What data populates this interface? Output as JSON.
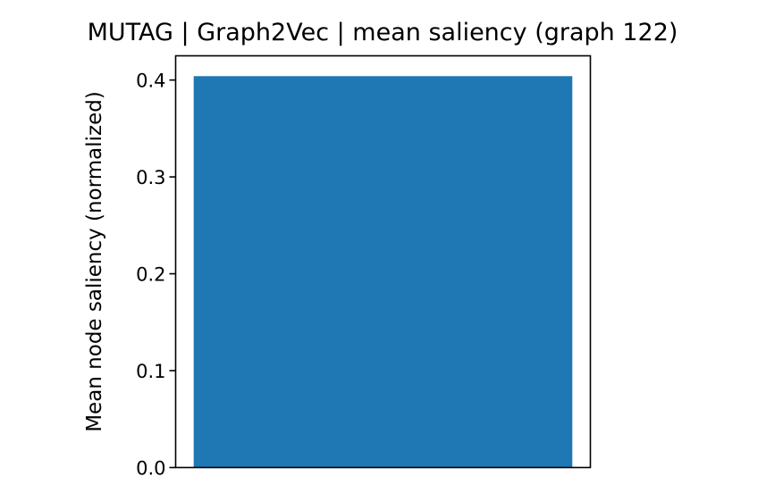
{
  "chart_data": {
    "type": "bar",
    "title": "MUTAG | Graph2Vec | mean saliency (graph 122)",
    "ylabel": "Mean node saliency (normalized)",
    "xlabel": "",
    "categories": [
      ""
    ],
    "values": [
      0.404
    ],
    "ylim": [
      0,
      0.425
    ],
    "yticks": [
      "0.0",
      "0.1",
      "0.2",
      "0.3",
      "0.4"
    ],
    "bar_color": "#1f77b4",
    "grid": false,
    "legend": false
  }
}
